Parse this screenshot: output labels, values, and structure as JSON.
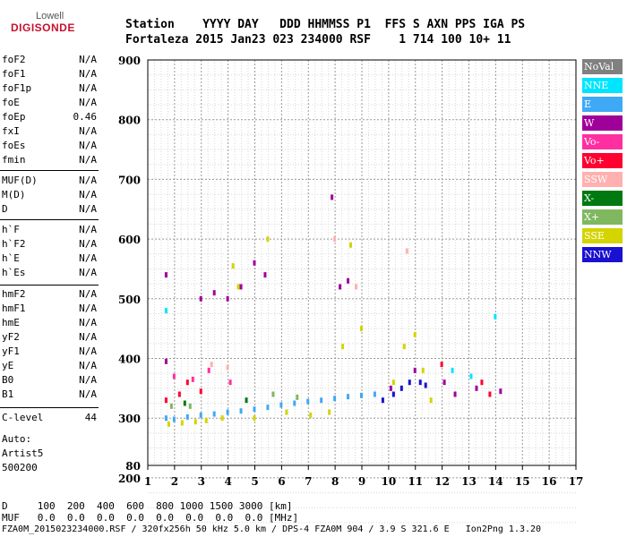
{
  "logo": {
    "line1": "Lowell",
    "line2": "DIGISONDE"
  },
  "header": {
    "labels": "Station    YYYY DAY   DDD HHMMSS P1  FFS S AXN PPS IGA PS",
    "values": "Fortaleza 2015 Jan23 023 234000 RSF    1 714 100 10+ 11"
  },
  "params_group1": [
    {
      "name": "foF2",
      "value": "N/A"
    },
    {
      "name": "foF1",
      "value": "N/A"
    },
    {
      "name": "foF1p",
      "value": "N/A"
    },
    {
      "name": "foE",
      "value": "N/A"
    },
    {
      "name": "foEp",
      "value": "0.46"
    },
    {
      "name": "fxI",
      "value": "N/A"
    },
    {
      "name": "foEs",
      "value": "N/A"
    },
    {
      "name": "fmin",
      "value": "N/A"
    }
  ],
  "params_group2": [
    {
      "name": "MUF(D)",
      "value": "N/A"
    },
    {
      "name": "M(D)",
      "value": "N/A"
    },
    {
      "name": "D",
      "value": "N/A"
    }
  ],
  "params_group3": [
    {
      "name": "h`F",
      "value": "N/A"
    },
    {
      "name": "h`F2",
      "value": "N/A"
    },
    {
      "name": "h`E",
      "value": "N/A"
    },
    {
      "name": "h`Es",
      "value": "N/A"
    }
  ],
  "params_group4": [
    {
      "name": "hmF2",
      "value": "N/A"
    },
    {
      "name": "hmF1",
      "value": "N/A"
    },
    {
      "name": "hmE",
      "value": "N/A"
    },
    {
      "name": "yF2",
      "value": "N/A"
    },
    {
      "name": "yF1",
      "value": "N/A"
    },
    {
      "name": "yE",
      "value": "N/A"
    },
    {
      "name": "B0",
      "value": "N/A"
    },
    {
      "name": "B1",
      "value": "N/A"
    }
  ],
  "clevel": {
    "name": "C-level",
    "value": "44"
  },
  "auto": {
    "line1": "Auto:",
    "line2": "Artist5",
    "line3": "500200"
  },
  "legend": [
    {
      "label": "NoVal",
      "color": "#808080"
    },
    {
      "label": "NNE",
      "color": "#00e5ff"
    },
    {
      "label": "E",
      "color": "#3fa9f5"
    },
    {
      "label": "W",
      "color": "#a0009a"
    },
    {
      "label": "Vo-",
      "color": "#ff2fa0"
    },
    {
      "label": "Vo+",
      "color": "#ff0030"
    },
    {
      "label": "SSW",
      "color": "#ffb0b0"
    },
    {
      "label": "X-",
      "color": "#007a10"
    },
    {
      "label": "X+",
      "color": "#80b860"
    },
    {
      "label": "SSE",
      "color": "#d4d400"
    },
    {
      "label": "NNW",
      "color": "#1a10d0"
    }
  ],
  "bottom": {
    "d_line": "D     100  200  400  600  800 1000 1500 3000 [km]",
    "muf_line": "MUF   0.0  0.0  0.0  0.0  0.0  0.0  0.0  0.0 [MHz]",
    "footer": "FZA0M_2015023234000.RSF / 320fx256h 50 kHz 5.0 km / DPS-4 FZA0M 904 / 3.9 S 321.6 E   Ion2Png 1.3.20"
  },
  "chart_data": {
    "type": "scatter",
    "xlim": [
      1,
      17
    ],
    "ylim": [
      80,
      900
    ],
    "x_ticks": [
      1,
      2,
      3,
      4,
      5,
      6,
      7,
      8,
      9,
      10,
      11,
      12,
      13,
      14,
      15,
      16,
      17
    ],
    "y_ticks": [
      80,
      200,
      300,
      400,
      500,
      600,
      700,
      800,
      900
    ],
    "grid": true,
    "series": [
      {
        "name": "E",
        "color": "#3fa9f5",
        "points": [
          [
            1.7,
            300
          ],
          [
            2.0,
            298
          ],
          [
            2.5,
            302
          ],
          [
            3.0,
            305
          ],
          [
            3.5,
            307
          ],
          [
            4.0,
            310
          ],
          [
            4.5,
            312
          ],
          [
            5.0,
            315
          ],
          [
            5.5,
            318
          ],
          [
            6.0,
            322
          ],
          [
            6.5,
            325
          ],
          [
            7.0,
            328
          ],
          [
            7.5,
            330
          ],
          [
            8.0,
            333
          ],
          [
            8.5,
            336
          ],
          [
            9.0,
            338
          ],
          [
            9.5,
            340
          ]
        ]
      },
      {
        "name": "SSE",
        "color": "#d4d400",
        "points": [
          [
            1.8,
            290
          ],
          [
            2.3,
            292
          ],
          [
            2.8,
            294
          ],
          [
            3.2,
            296
          ],
          [
            3.8,
            300
          ],
          [
            4.2,
            555
          ],
          [
            4.4,
            520
          ],
          [
            5.0,
            300
          ],
          [
            5.5,
            600
          ],
          [
            6.2,
            310
          ],
          [
            7.1,
            305
          ],
          [
            7.8,
            310
          ],
          [
            8.3,
            420
          ],
          [
            8.6,
            590
          ],
          [
            9.0,
            450
          ],
          [
            10.2,
            360
          ],
          [
            10.6,
            420
          ],
          [
            11.0,
            440
          ],
          [
            11.3,
            380
          ],
          [
            11.6,
            330
          ]
        ]
      },
      {
        "name": "W",
        "color": "#a0009a",
        "points": [
          [
            1.7,
            395
          ],
          [
            1.7,
            540
          ],
          [
            3.0,
            500
          ],
          [
            3.5,
            510
          ],
          [
            4.0,
            500
          ],
          [
            4.5,
            520
          ],
          [
            5.0,
            560
          ],
          [
            5.4,
            540
          ],
          [
            7.9,
            670
          ],
          [
            8.2,
            520
          ],
          [
            8.5,
            530
          ],
          [
            10.1,
            350
          ],
          [
            11.0,
            380
          ],
          [
            12.1,
            360
          ],
          [
            12.5,
            340
          ],
          [
            13.3,
            350
          ],
          [
            14.2,
            345
          ]
        ]
      },
      {
        "name": "NNW",
        "color": "#1a10d0",
        "points": [
          [
            9.8,
            330
          ],
          [
            10.2,
            340
          ],
          [
            10.5,
            350
          ],
          [
            10.8,
            360
          ],
          [
            11.2,
            360
          ],
          [
            11.4,
            355
          ]
        ]
      },
      {
        "name": "Vo+",
        "color": "#ff0030",
        "points": [
          [
            1.7,
            330
          ],
          [
            2.2,
            340
          ],
          [
            2.5,
            360
          ],
          [
            3.0,
            345
          ],
          [
            12.0,
            390
          ],
          [
            13.5,
            360
          ],
          [
            13.8,
            340
          ]
        ]
      },
      {
        "name": "Vo-",
        "color": "#ff2fa0",
        "points": [
          [
            2.0,
            370
          ],
          [
            2.7,
            365
          ],
          [
            3.3,
            380
          ],
          [
            4.1,
            360
          ]
        ]
      },
      {
        "name": "SSW",
        "color": "#ffb0b0",
        "points": [
          [
            3.4,
            390
          ],
          [
            4.0,
            385
          ],
          [
            8.0,
            600
          ],
          [
            8.8,
            520
          ],
          [
            10.7,
            580
          ]
        ]
      },
      {
        "name": "NNE",
        "color": "#00e5ff",
        "points": [
          [
            1.7,
            480
          ],
          [
            12.4,
            380
          ],
          [
            13.1,
            370
          ],
          [
            14.0,
            470
          ]
        ]
      },
      {
        "name": "X+",
        "color": "#80b860",
        "points": [
          [
            1.9,
            320
          ],
          [
            2.6,
            320
          ],
          [
            5.7,
            340
          ],
          [
            6.6,
            335
          ]
        ]
      },
      {
        "name": "X-",
        "color": "#007a10",
        "points": [
          [
            2.4,
            325
          ],
          [
            4.7,
            330
          ]
        ]
      }
    ]
  }
}
